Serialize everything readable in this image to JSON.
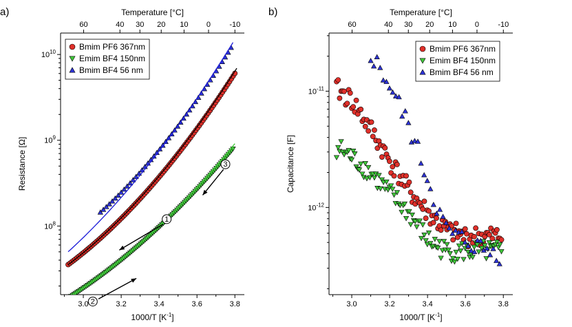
{
  "chart_data": [
    {
      "panel_label": "a)",
      "type": "scatter",
      "title": "",
      "xlabel": "1000/T [K",
      "xlabel_sup": "-1",
      "xlabel_end": "]",
      "ylabel": "Resistance [Ω]",
      "top_axis_label": "Temperature [°C]",
      "xlim": [
        2.88,
        3.85
      ],
      "ylim_log10": [
        7.2,
        10.25
      ],
      "x_ticks": [
        3.0,
        3.2,
        3.4,
        3.6,
        3.8
      ],
      "x_tick_labels": [
        "3.0",
        "3.2",
        "3.4",
        "3.6",
        "3.8"
      ],
      "y_ticks_log10": [
        8,
        9,
        10
      ],
      "y_tick_labels": [
        "10^8",
        "10^9",
        "10^10"
      ],
      "top_ticks_c": [
        60,
        40,
        30,
        20,
        10,
        0,
        -10
      ],
      "top_tick_labels": [
        "60",
        "40",
        "30",
        "20",
        "10",
        "0",
        "-10"
      ],
      "legend": [
        "Bmim PF6 367nm",
        "Emim BF4 150nm",
        "Bmim BF4 56 nm"
      ],
      "series": [
        {
          "name": "Bmim PF6 367nm",
          "marker": "circle",
          "color": "#e0302a",
          "x_range": [
            2.92,
            3.8
          ],
          "log10R_start": 7.55,
          "log10R_end": 9.78,
          "curvature": 0.55,
          "n": 95,
          "fit_color": "#000000"
        },
        {
          "name": "Emim BF4 150nm",
          "marker": "triangle-down",
          "color": "#40c83a",
          "x_range": [
            2.92,
            3.79
          ],
          "log10R_start": 7.16,
          "log10R_end": 8.9,
          "curvature": 0.45,
          "n": 110,
          "fit_color": "#40c83a"
        },
        {
          "name": "Bmim BF4 56 nm",
          "marker": "triangle-up",
          "color": "#2d33d6",
          "x_range": [
            3.09,
            3.78
          ],
          "log10R_start": 8.16,
          "log10R_end": 10.08,
          "curvature": 0.4,
          "n": 45,
          "fit_color": "#1a1ad8",
          "fit_x_range": [
            2.92,
            3.79
          ],
          "fit_start": 7.7
        }
      ],
      "annotations": [
        {
          "label": "1",
          "x": 3.44,
          "log10": 8.08
        },
        {
          "label": "2",
          "x": 3.05,
          "log10": 7.12
        },
        {
          "label": "3",
          "x": 3.75,
          "log10": 8.72
        }
      ]
    },
    {
      "panel_label": "b)",
      "type": "scatter",
      "title": "",
      "xlabel": "1000/T [K",
      "xlabel_sup": "-1",
      "xlabel_end": "]",
      "ylabel": "Capacitance [F]",
      "top_axis_label": "Temperature [°C]",
      "xlim": [
        2.88,
        3.85
      ],
      "ylim_log10": [
        -12.75,
        -10.5
      ],
      "x_ticks": [
        3.0,
        3.2,
        3.4,
        3.6,
        3.8
      ],
      "x_tick_labels": [
        "3.0",
        "3.2",
        "3.4",
        "3.6",
        "3.8"
      ],
      "y_ticks_log10": [
        -12,
        -11
      ],
      "y_tick_labels": [
        "10^-12",
        "10^-11"
      ],
      "top_ticks_c": [
        60,
        40,
        30,
        20,
        10,
        0,
        -10
      ],
      "top_tick_labels": [
        "60",
        "40",
        "30",
        "20",
        "10",
        "0",
        "-10"
      ],
      "legend": [
        "Bmim PF6 367nm",
        "Emim BF4 150nm",
        "Bmim BF4 56 nm"
      ],
      "series": [
        {
          "name": "Bmim PF6 367nm",
          "marker": "circle",
          "color": "#e0302a",
          "x_range": [
            2.92,
            3.79
          ],
          "n": 110,
          "profile": [
            [
              2.92,
              -10.98
            ],
            [
              3.0,
              -11.08
            ],
            [
              3.1,
              -11.33
            ],
            [
              3.2,
              -11.6
            ],
            [
              3.3,
              -11.85
            ],
            [
              3.4,
              -12.05
            ],
            [
              3.5,
              -12.2
            ],
            [
              3.6,
              -12.25
            ],
            [
              3.79,
              -12.25
            ]
          ]
        },
        {
          "name": "Emim BF4 150nm",
          "marker": "triangle-down",
          "color": "#40c83a",
          "x_range": [
            2.92,
            3.79
          ],
          "n": 110,
          "profile": [
            [
              2.92,
              -11.48
            ],
            [
              3.0,
              -11.57
            ],
            [
              3.1,
              -11.7
            ],
            [
              3.2,
              -11.88
            ],
            [
              3.3,
              -12.05
            ],
            [
              3.4,
              -12.28
            ],
            [
              3.5,
              -12.38
            ],
            [
              3.6,
              -12.38
            ],
            [
              3.79,
              -12.38
            ]
          ]
        },
        {
          "name": "Bmim BF4 56 nm",
          "marker": "triangle-up",
          "color": "#2d33d6",
          "x_range": [
            3.1,
            3.78
          ],
          "n": 42,
          "profile": [
            [
              3.1,
              -10.68
            ],
            [
              3.2,
              -10.95
            ],
            [
              3.3,
              -11.3
            ],
            [
              3.4,
              -11.75
            ],
            [
              3.45,
              -12.0
            ],
            [
              3.5,
              -12.2
            ],
            [
              3.55,
              -12.25
            ],
            [
              3.7,
              -12.36
            ],
            [
              3.78,
              -12.4
            ]
          ]
        }
      ]
    }
  ]
}
